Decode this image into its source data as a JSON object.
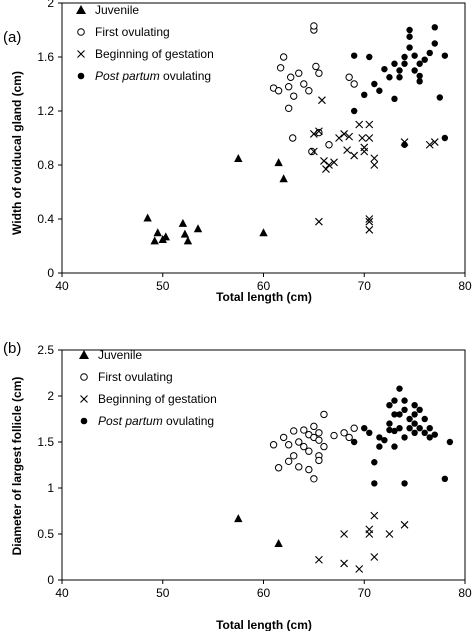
{
  "chart_data": [
    {
      "panel": "(a)",
      "type": "scatter",
      "xlabel": "Total length (cm)",
      "ylabel": "Width of oviducal gland (cm)",
      "xlim": [
        40,
        80
      ],
      "ylim": [
        0,
        2
      ],
      "xticks": [
        "40",
        "50",
        "60",
        "70",
        "80"
      ],
      "yticks": [
        "0",
        "0.4",
        "0.8",
        "1.2",
        "1.6",
        "2"
      ],
      "grid": false,
      "legend": "top-left",
      "series": [
        {
          "name": "Juvenile",
          "marker": "triangle",
          "points": [
            [
              48.5,
              0.41
            ],
            [
              49.2,
              0.24
            ],
            [
              49.5,
              0.3
            ],
            [
              50.0,
              0.25
            ],
            [
              50.3,
              0.27
            ],
            [
              52.0,
              0.37
            ],
            [
              52.2,
              0.29
            ],
            [
              52.5,
              0.24
            ],
            [
              53.5,
              0.33
            ],
            [
              57.5,
              0.85
            ],
            [
              60.0,
              0.3
            ],
            [
              61.5,
              0.82
            ],
            [
              62.0,
              0.7
            ]
          ]
        },
        {
          "name": "First ovulating",
          "marker": "open-circle",
          "points": [
            [
              61.0,
              1.37
            ],
            [
              61.5,
              1.35
            ],
            [
              61.7,
              1.52
            ],
            [
              62.0,
              1.6
            ],
            [
              62.5,
              1.22
            ],
            [
              62.5,
              1.38
            ],
            [
              62.7,
              1.45
            ],
            [
              62.9,
              1.0
            ],
            [
              63.0,
              1.31
            ],
            [
              63.5,
              1.48
            ],
            [
              64.0,
              1.4
            ],
            [
              64.5,
              1.35
            ],
            [
              64.8,
              0.9
            ],
            [
              65.0,
              1.8
            ],
            [
              65.0,
              1.83
            ],
            [
              65.2,
              1.53
            ],
            [
              65.5,
              1.48
            ],
            [
              65.5,
              1.04
            ],
            [
              68.5,
              1.45
            ],
            [
              69.0,
              1.4
            ],
            [
              66.5,
              0.95
            ]
          ]
        },
        {
          "name": "Beginning of gestation",
          "marker": "x",
          "points": [
            [
              65.0,
              1.03
            ],
            [
              65.0,
              0.9
            ],
            [
              65.5,
              0.38
            ],
            [
              65.5,
              1.05
            ],
            [
              65.8,
              1.28
            ],
            [
              66.0,
              0.83
            ],
            [
              66.2,
              0.77
            ],
            [
              66.5,
              0.8
            ],
            [
              67.0,
              0.82
            ],
            [
              67.5,
              1.0
            ],
            [
              68.0,
              1.03
            ],
            [
              68.3,
              0.91
            ],
            [
              68.5,
              1.01
            ],
            [
              69.0,
              0.87
            ],
            [
              69.5,
              1.1
            ],
            [
              69.8,
              1.0
            ],
            [
              70.0,
              0.9
            ],
            [
              70.0,
              0.93
            ],
            [
              70.5,
              0.4
            ],
            [
              70.5,
              0.32
            ],
            [
              70.5,
              0.38
            ],
            [
              70.5,
              1.1
            ],
            [
              70.5,
              1.0
            ],
            [
              71.0,
              0.85
            ],
            [
              71.0,
              0.8
            ],
            [
              74.0,
              0.97
            ],
            [
              76.5,
              0.95
            ],
            [
              77.0,
              0.97
            ]
          ]
        },
        {
          "name": "Post partum ovulating",
          "marker": "filled-circle",
          "points": [
            [
              69.0,
              1.2
            ],
            [
              69.0,
              1.61
            ],
            [
              70.0,
              1.32
            ],
            [
              70.5,
              1.6
            ],
            [
              71.0,
              1.4
            ],
            [
              71.5,
              1.35
            ],
            [
              72.0,
              1.51
            ],
            [
              72.5,
              1.45
            ],
            [
              73.0,
              1.29
            ],
            [
              73.5,
              1.45
            ],
            [
              73.5,
              1.5
            ],
            [
              74.0,
              1.55
            ],
            [
              74.0,
              1.6
            ],
            [
              74.0,
              0.95
            ],
            [
              74.5,
              1.67
            ],
            [
              74.5,
              1.75
            ],
            [
              75.0,
              1.5
            ],
            [
              75.0,
              1.61
            ],
            [
              75.5,
              1.55
            ],
            [
              75.5,
              1.42
            ],
            [
              75.5,
              1.46
            ],
            [
              76.0,
              1.58
            ],
            [
              76.5,
              1.63
            ],
            [
              77.0,
              1.82
            ],
            [
              77.0,
              1.7
            ],
            [
              77.5,
              1.3
            ],
            [
              78.0,
              1.61
            ],
            [
              78.0,
              1.0
            ],
            [
              74.5,
              1.8
            ],
            [
              73.0,
              1.55
            ]
          ]
        }
      ]
    },
    {
      "panel": "(b)",
      "type": "scatter",
      "xlabel": "Total length (cm)",
      "ylabel": "Diameter of largest follicle (cm)",
      "xlim": [
        40,
        80
      ],
      "ylim": [
        0,
        2.5
      ],
      "xticks": [
        "40",
        "50",
        "60",
        "70",
        "80"
      ],
      "yticks": [
        "0",
        "0.5",
        "1",
        "1.5",
        "2",
        "2.5"
      ],
      "grid": false,
      "legend": "top-left",
      "series": [
        {
          "name": "Juvenile",
          "marker": "triangle",
          "points": [
            [
              57.5,
              0.67
            ],
            [
              61.5,
              0.4
            ]
          ]
        },
        {
          "name": "First ovulating",
          "marker": "open-circle",
          "points": [
            [
              61.0,
              1.47
            ],
            [
              61.5,
              1.22
            ],
            [
              62.0,
              1.55
            ],
            [
              62.5,
              1.29
            ],
            [
              62.5,
              1.47
            ],
            [
              63.0,
              1.35
            ],
            [
              63.0,
              1.62
            ],
            [
              63.5,
              1.23
            ],
            [
              63.5,
              1.5
            ],
            [
              64.0,
              1.45
            ],
            [
              64.0,
              1.63
            ],
            [
              64.5,
              1.58
            ],
            [
              64.5,
              1.4
            ],
            [
              64.5,
              1.2
            ],
            [
              65.0,
              1.67
            ],
            [
              65.0,
              1.55
            ],
            [
              65.5,
              1.52
            ],
            [
              65.5,
              1.6
            ],
            [
              65.5,
              1.35
            ],
            [
              65.5,
              1.3
            ],
            [
              66.0,
              1.8
            ],
            [
              66.0,
              1.45
            ],
            [
              67.0,
              1.57
            ],
            [
              68.0,
              1.6
            ],
            [
              68.5,
              1.55
            ],
            [
              69.0,
              1.65
            ],
            [
              65.0,
              1.1
            ]
          ]
        },
        {
          "name": "Beginning of gestation",
          "marker": "x",
          "points": [
            [
              65.5,
              0.22
            ],
            [
              68.0,
              0.5
            ],
            [
              68.0,
              0.18
            ],
            [
              69.5,
              0.12
            ],
            [
              70.5,
              0.5
            ],
            [
              70.5,
              0.55
            ],
            [
              71.0,
              0.7
            ],
            [
              71.0,
              0.25
            ],
            [
              72.5,
              0.5
            ],
            [
              74.0,
              0.6
            ]
          ]
        },
        {
          "name": "Post partum ovulating",
          "marker": "filled-circle",
          "points": [
            [
              69.0,
              1.5
            ],
            [
              70.0,
              1.65
            ],
            [
              70.5,
              1.6
            ],
            [
              71.0,
              1.05
            ],
            [
              71.0,
              1.28
            ],
            [
              71.5,
              1.45
            ],
            [
              72.0,
              1.52
            ],
            [
              72.5,
              1.63
            ],
            [
              72.5,
              1.7
            ],
            [
              73.0,
              1.8
            ],
            [
              73.0,
              1.95
            ],
            [
              73.0,
              1.45
            ],
            [
              73.5,
              2.08
            ],
            [
              73.5,
              1.8
            ],
            [
              73.5,
              1.65
            ],
            [
              74.0,
              1.85
            ],
            [
              74.0,
              1.55
            ],
            [
              74.0,
              1.95
            ],
            [
              74.0,
              1.05
            ],
            [
              74.5,
              1.75
            ],
            [
              74.5,
              1.65
            ],
            [
              75.0,
              1.6
            ],
            [
              75.0,
              1.8
            ],
            [
              75.0,
              1.7
            ],
            [
              75.5,
              1.85
            ],
            [
              75.5,
              1.65
            ],
            [
              76.0,
              1.75
            ],
            [
              76.0,
              1.6
            ],
            [
              76.5,
              1.55
            ],
            [
              76.5,
              1.65
            ],
            [
              77.0,
              1.58
            ],
            [
              78.0,
              1.1
            ],
            [
              78.5,
              1.5
            ],
            [
              72.5,
              1.9
            ],
            [
              71.5,
              1.55
            ],
            [
              73.0,
              1.62
            ],
            [
              75.0,
              1.9
            ]
          ]
        }
      ]
    }
  ]
}
